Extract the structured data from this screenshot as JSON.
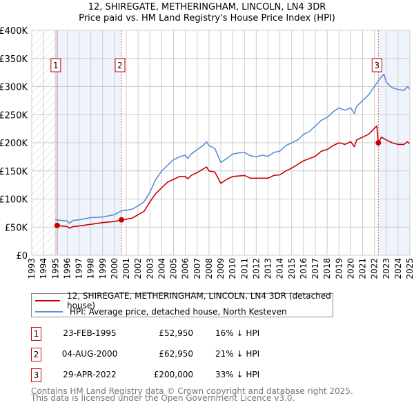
{
  "chart_data": {
    "type": "line",
    "title_line1": "12, SHIREGATE, METHERINGHAM, LINCOLN, LN4 3DR",
    "title_line2": "Price paid vs. HM Land Registry's House Price Index (HPI)",
    "xlim": [
      1993,
      2025
    ],
    "ylim": [
      0,
      400000
    ],
    "x_ticks": [
      "1993",
      "1994",
      "1995",
      "1996",
      "1997",
      "1998",
      "1999",
      "2000",
      "2001",
      "2002",
      "2003",
      "2004",
      "2005",
      "2006",
      "2007",
      "2008",
      "2009",
      "2010",
      "2011",
      "2012",
      "2013",
      "2014",
      "2015",
      "2016",
      "2017",
      "2018",
      "2019",
      "2020",
      "2021",
      "2022",
      "2023",
      "2024",
      "2025"
    ],
    "y_ticks": [
      {
        "v": 0,
        "label": "£0"
      },
      {
        "v": 50000,
        "label": "£50K"
      },
      {
        "v": 100000,
        "label": "£100K"
      },
      {
        "v": 150000,
        "label": "£150K"
      },
      {
        "v": 200000,
        "label": "£200K"
      },
      {
        "v": 250000,
        "label": "£250K"
      },
      {
        "v": 300000,
        "label": "£300K"
      },
      {
        "v": 350000,
        "label": "£350K"
      },
      {
        "v": 400000,
        "label": "£400K"
      }
    ],
    "grid": true,
    "colors": {
      "property": "#cc0000",
      "hpi": "#5b8ed6",
      "shade": "#eef3fc",
      "marker_border": "#cc0000"
    },
    "hatched_range": [
      1993,
      1995.15
    ],
    "shaded_ranges": [
      [
        1995.15,
        2000.59
      ],
      [
        2022.33,
        2025
      ]
    ],
    "series": [
      {
        "name": "12, SHIREGATE, METHERINGHAM, LINCOLN, LN4 3DR (detached house)",
        "key": "property",
        "x": [
          1995.15,
          1996,
          1996.2,
          1996.5,
          1997,
          1998,
          1999,
          2000,
          2000.59,
          2001,
          2001.5,
          2002,
          2002.5,
          2003,
          2003.5,
          2004,
          2004.5,
          2005,
          2005.5,
          2006,
          2006.2,
          2006.5,
          2007,
          2007.8,
          2008,
          2008.5,
          2009,
          2009.5,
          2010,
          2011,
          2011.5,
          2012,
          2013,
          2013.5,
          2014,
          2014.5,
          2015,
          2016,
          2017,
          2017.5,
          2018,
          2018.5,
          2019,
          2019.5,
          2020,
          2020.3,
          2020.5,
          2021,
          2021.5,
          2022.2,
          2022.33,
          2022.6,
          2023,
          2023.5,
          2024,
          2024.5,
          2024.8,
          2025
        ],
        "y": [
          52950,
          51000,
          48000,
          51000,
          52000,
          55000,
          58000,
          60000,
          62950,
          64000,
          66000,
          72000,
          78000,
          95000,
          110000,
          120000,
          130000,
          135000,
          140000,
          140000,
          136000,
          142000,
          147000,
          157000,
          150000,
          148000,
          128000,
          135000,
          140000,
          142000,
          137000,
          137000,
          137000,
          142000,
          143000,
          150000,
          155000,
          168000,
          176000,
          185000,
          188000,
          195000,
          200000,
          197000,
          202000,
          193000,
          205000,
          210000,
          215000,
          230000,
          200000,
          210000,
          205000,
          200000,
          197000,
          197000,
          202000,
          198000
        ]
      },
      {
        "name": "HPI: Average price, detached house, North Kesteven",
        "key": "hpi",
        "x": [
          1995,
          1995.5,
          1996,
          1996.2,
          1996.5,
          1997,
          1997.5,
          1998,
          1999,
          1999.5,
          2000,
          2000.59,
          2001,
          2001.5,
          2002,
          2002.5,
          2003,
          2003.5,
          2004,
          2004.5,
          2005,
          2005.5,
          2006,
          2006.2,
          2006.5,
          2007,
          2007.5,
          2007.8,
          2008,
          2008.5,
          2009,
          2009.5,
          2010,
          2010.5,
          2011,
          2011.5,
          2012,
          2012.5,
          2013,
          2013.5,
          2014,
          2014.5,
          2015,
          2015.5,
          2016,
          2016.5,
          2017,
          2017.5,
          2018,
          2018.5,
          2019,
          2019.5,
          2020,
          2020.3,
          2020.5,
          2021,
          2021.5,
          2022,
          2022.5,
          2022.8,
          2023,
          2023.5,
          2024,
          2024.5,
          2024.8,
          2025
        ],
        "y": [
          63000,
          62000,
          61000,
          57000,
          62000,
          63000,
          65000,
          67000,
          68000,
          70000,
          72000,
          79000,
          80000,
          82000,
          88000,
          95000,
          112000,
          135000,
          150000,
          160000,
          170000,
          175000,
          178000,
          172000,
          180000,
          188000,
          195000,
          202000,
          195000,
          190000,
          165000,
          172000,
          180000,
          182000,
          183000,
          177000,
          175000,
          178000,
          176000,
          183000,
          185000,
          195000,
          200000,
          205000,
          215000,
          220000,
          230000,
          240000,
          245000,
          255000,
          262000,
          258000,
          262000,
          252000,
          265000,
          275000,
          285000,
          300000,
          315000,
          322000,
          308000,
          298000,
          295000,
          293000,
          300000,
          295000
        ]
      }
    ],
    "sales": [
      {
        "label": "1",
        "x": 1995.15,
        "y": 52950,
        "date": "23-FEB-1995",
        "price": "£52,950",
        "hpi_diff": "16% ↓ HPI"
      },
      {
        "label": "2",
        "x": 2000.59,
        "y": 62950,
        "date": "04-AUG-2000",
        "price": "£62,950",
        "hpi_diff": "21% ↓ HPI"
      },
      {
        "label": "3",
        "x": 2022.33,
        "y": 200000,
        "date": "29-APR-2022",
        "price": "£200,000",
        "hpi_diff": "33% ↓ HPI"
      }
    ]
  },
  "legend": {
    "property": "12, SHIREGATE, METHERINGHAM, LINCOLN, LN4 3DR (detached house)",
    "hpi": "HPI: Average price, detached house, North Kesteven"
  },
  "footer": {
    "line1": "Contains HM Land Registry data © Crown copyright and database right 2025.",
    "line2": "This data is licensed under the Open Government Licence v3.0."
  }
}
